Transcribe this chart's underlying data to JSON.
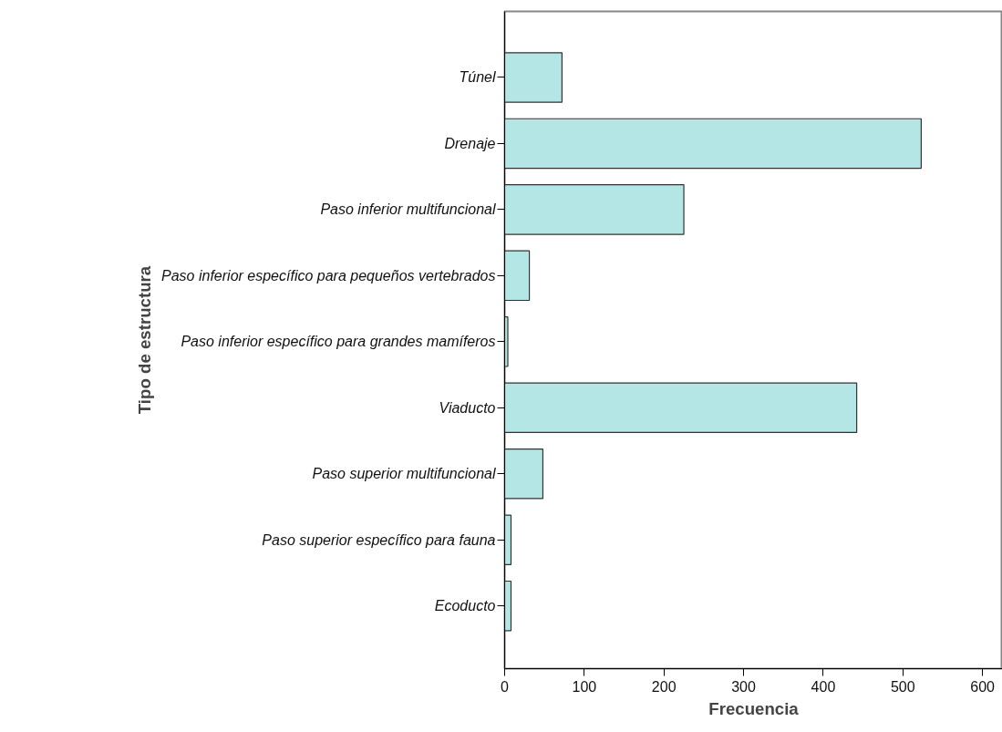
{
  "chart_data": {
    "type": "bar",
    "orientation": "horizontal",
    "xlabel": "Frecuencia",
    "ylabel": "Tipo de estructura",
    "categories": [
      "Túnel",
      "Drenaje",
      "Paso inferior multifuncional",
      "Paso inferior específico para pequeños vertebrados",
      "Paso inferior específico para grandes mamíferos",
      "Viaducto",
      "Paso superior multifuncional",
      "Paso superior específico para fauna",
      "Ecoducto"
    ],
    "values": [
      72,
      523,
      225,
      31,
      4,
      442,
      48,
      8,
      8
    ],
    "color": "#b4e6e6",
    "xlim": [
      0,
      625
    ],
    "xticks": [
      0,
      100,
      200,
      300,
      400,
      500,
      600
    ],
    "grid": false
  }
}
